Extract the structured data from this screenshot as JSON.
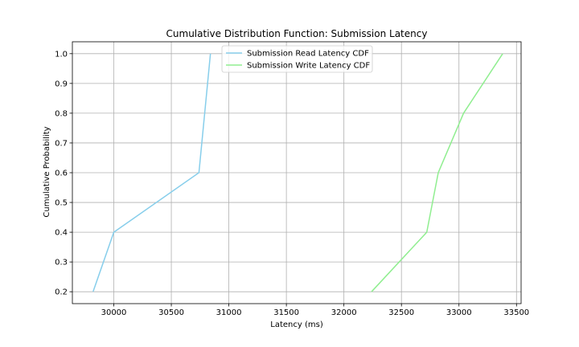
{
  "chart_data": {
    "type": "line",
    "title": "Cumulative Distribution Function: Submission Latency",
    "xlabel": "Latency (ms)",
    "ylabel": "Cumulative Probability",
    "xlim": [
      29640,
      33540
    ],
    "ylim": [
      0.16,
      1.04
    ],
    "xticks": [
      30000,
      30500,
      31000,
      31500,
      32000,
      32500,
      33000,
      33500
    ],
    "yticks": [
      0.2,
      0.3,
      0.4,
      0.5,
      0.6,
      0.7,
      0.8,
      0.9,
      1.0
    ],
    "grid": true,
    "legend_position": "top-center",
    "series": [
      {
        "name": "Submission Read Latency CDF",
        "color": "#87CEEB",
        "x": [
          29820,
          30000,
          30740,
          30840
        ],
        "y": [
          0.2,
          0.4,
          0.6,
          1.0
        ]
      },
      {
        "name": "Submission Write Latency CDF",
        "color": "#90EE90",
        "x": [
          32240,
          32720,
          32820,
          33040,
          33380
        ],
        "y": [
          0.2,
          0.4,
          0.6,
          0.8,
          1.0
        ]
      }
    ]
  }
}
